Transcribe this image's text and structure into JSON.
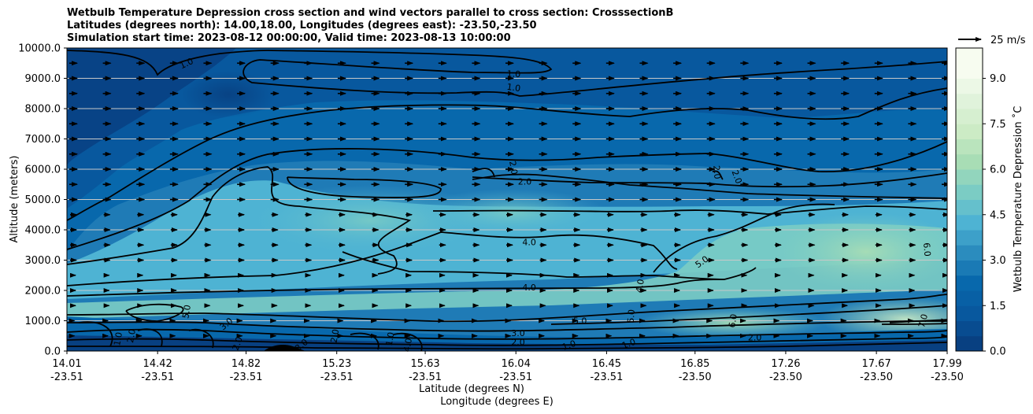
{
  "chart_data": {
    "type": "heatmap",
    "title_lines": [
      "Wetbulb Temperature Depression cross section and wind vectors parallel to cross section: CrosssectionB",
      "Latitudes (degrees north): 14.00,18.00, Longitudes (degrees east): -23.50,-23.50",
      "Simulation start time: 2023-08-12 00:00:00, Valid time: 2023-08-13 10:00:00"
    ],
    "ylabel": "Altitude (meters)",
    "xlabel": "Latitude (degrees N)",
    "xlabel2": "Longitude (degrees E)",
    "ylim": [
      0,
      10000
    ],
    "yticks": [
      "0.0",
      "1000.0",
      "2000.0",
      "3000.0",
      "4000.0",
      "5000.0",
      "6000.0",
      "7000.0",
      "8000.0",
      "9000.0",
      "10000.0"
    ],
    "x_ticks": [
      {
        "lat": "14.01",
        "lon": "-23.51"
      },
      {
        "lat": "14.42",
        "lon": "-23.51"
      },
      {
        "lat": "14.82",
        "lon": "-23.51"
      },
      {
        "lat": "15.23",
        "lon": "-23.51"
      },
      {
        "lat": "15.63",
        "lon": "-23.51"
      },
      {
        "lat": "16.04",
        "lon": "-23.51"
      },
      {
        "lat": "16.45",
        "lon": "-23.51"
      },
      {
        "lat": "16.85",
        "lon": "-23.50"
      },
      {
        "lat": "17.26",
        "lon": "-23.50"
      },
      {
        "lat": "17.67",
        "lon": "-23.50"
      },
      {
        "lat": "17.99",
        "lon": "-23.50"
      }
    ],
    "colorbar": {
      "label": "Wetbulb Temperature Depression ˚C",
      "min": 0,
      "max": 10,
      "ticks": [
        "0.0",
        "1.5",
        "3.0",
        "4.5",
        "6.0",
        "7.5",
        "9.0"
      ],
      "colors": [
        "#084081",
        "#08589e",
        "#0868ac",
        "#2b8cbe",
        "#4eb3d3",
        "#7bccc4",
        "#a8ddb5",
        "#ccebc5",
        "#e0f3db",
        "#f7fcf0"
      ]
    },
    "wind_key": "25 m/s",
    "contour_labels": [
      {
        "text": "1.0",
        "lat": 14.55,
        "alt": 9500,
        "rot": -25
      },
      {
        "text": "1.0",
        "lat": 16.03,
        "alt": 9150,
        "rot": 3
      },
      {
        "text": "1.0",
        "lat": 16.03,
        "alt": 8700,
        "rot": 8
      },
      {
        "text": "2.0",
        "lat": 16.03,
        "alt": 6050,
        "rot": 80
      },
      {
        "text": "2.0",
        "lat": 16.08,
        "alt": 5600,
        "rot": 0
      },
      {
        "text": "2.0",
        "lat": 16.95,
        "alt": 5900,
        "rot": 85
      },
      {
        "text": "2.0",
        "lat": 17.04,
        "alt": 5750,
        "rot": 70
      },
      {
        "text": "4.0",
        "lat": 16.1,
        "alt": 3600,
        "rot": 0
      },
      {
        "text": "4.0",
        "lat": 16.1,
        "alt": 2100,
        "rot": 0
      },
      {
        "text": "4.0",
        "lat": 16.6,
        "alt": 2150,
        "rot": -80
      },
      {
        "text": "5.0",
        "lat": 16.88,
        "alt": 2950,
        "rot": -35
      },
      {
        "text": "6.0",
        "lat": 17.9,
        "alt": 3350,
        "rot": 85
      },
      {
        "text": "5.0",
        "lat": 16.33,
        "alt": 1000,
        "rot": 0
      },
      {
        "text": "5.0",
        "lat": 16.56,
        "alt": 1150,
        "rot": -85
      },
      {
        "text": "6.0",
        "lat": 17.02,
        "alt": 1000,
        "rot": -80
      },
      {
        "text": "7.0",
        "lat": 17.88,
        "alt": 1000,
        "rot": -75
      },
      {
        "text": "5.0",
        "lat": 14.55,
        "alt": 1300,
        "rot": -80
      },
      {
        "text": "3.0",
        "lat": 14.73,
        "alt": 900,
        "rot": -40
      },
      {
        "text": "2.0",
        "lat": 14.78,
        "alt": 250,
        "rot": -70
      },
      {
        "text": "3.0",
        "lat": 15.07,
        "alt": 200,
        "rot": -40
      },
      {
        "text": "2.0",
        "lat": 15.22,
        "alt": 500,
        "rot": -80
      },
      {
        "text": "3.0",
        "lat": 16.05,
        "alt": 600,
        "rot": 0
      },
      {
        "text": "2.0",
        "lat": 16.05,
        "alt": 300,
        "rot": 0
      },
      {
        "text": "1.0",
        "lat": 16.28,
        "alt": 200,
        "rot": -20
      },
      {
        "text": "1.0",
        "lat": 16.55,
        "alt": 250,
        "rot": -20
      },
      {
        "text": "2.0",
        "lat": 17.12,
        "alt": 450,
        "rot": 0
      },
      {
        "text": "1.0",
        "lat": 14.24,
        "alt": 400,
        "rot": -80
      },
      {
        "text": "2.0",
        "lat": 14.3,
        "alt": 500,
        "rot": -80
      },
      {
        "text": "1.0",
        "lat": 15.47,
        "alt": 400,
        "rot": -80
      },
      {
        "text": "4.0",
        "lat": 15.55,
        "alt": 200,
        "rot": -80
      }
    ]
  }
}
